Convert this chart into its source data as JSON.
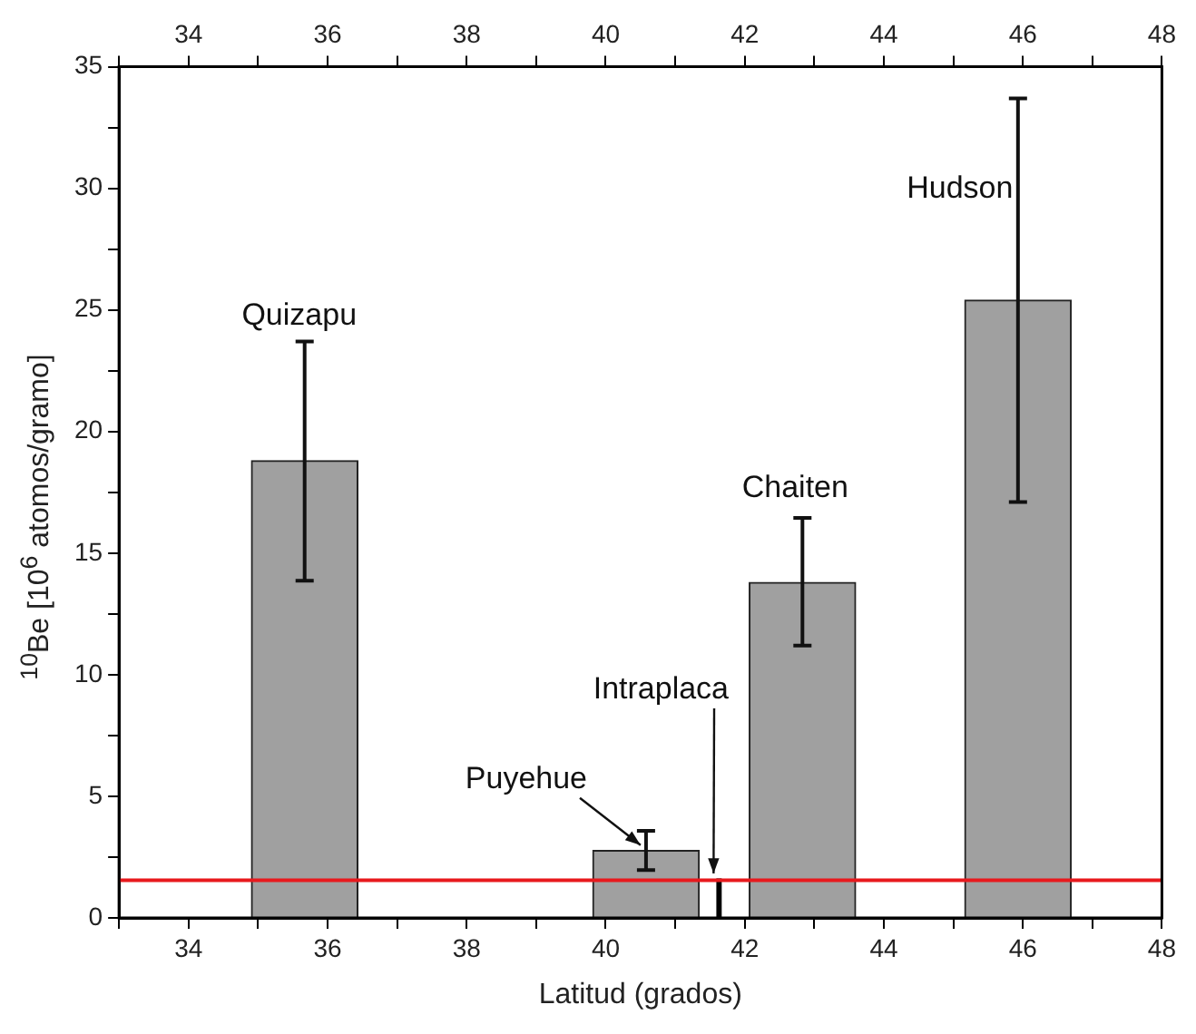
{
  "chart_data": {
    "type": "bar",
    "xlabel": "Latitud (grados)",
    "ylabel": "$^{10}$Be [10$^{6}$ atomos/gramo]",
    "series": [
      {
        "x": [
          35.67,
          40.58,
          42.83,
          45.93
        ],
        "values": [
          18.8,
          2.77,
          13.79,
          25.4
        ],
        "errors": [
          [
            13.87,
            23.7
          ],
          [
            1.97,
            3.58
          ],
          [
            11.2,
            16.45
          ],
          [
            17.1,
            33.7
          ]
        ],
        "color": "#a0a0a0"
      },
      {
        "x": [
          41.63
        ],
        "values": [
          1.6
        ],
        "color": "#000000"
      }
    ],
    "xlim": [
      33,
      48
    ],
    "xticks": [
      {
        "value": 33,
        "label": null
      },
      34,
      {
        "value": 35,
        "label": null
      },
      36,
      {
        "value": 37,
        "label": null
      },
      38,
      {
        "value": 39,
        "label": null
      },
      40,
      {
        "value": 41,
        "label": null
      },
      42,
      {
        "value": 43,
        "label": null
      },
      44,
      {
        "value": 45,
        "label": null
      },
      46,
      {
        "value": 47,
        "label": null
      },
      48
    ],
    "x2lim": [
      33,
      48
    ],
    "x2ticks": [
      {
        "value": 33,
        "label": null
      },
      34,
      {
        "value": 35,
        "label": null
      },
      36,
      {
        "value": 37,
        "label": null
      },
      38,
      {
        "value": 39,
        "label": null
      },
      40,
      {
        "value": 41,
        "label": null
      },
      42,
      {
        "value": 43,
        "label": null
      },
      44,
      {
        "value": 45,
        "label": null
      },
      46,
      {
        "value": 47,
        "label": null
      },
      48
    ],
    "ylim": [
      0,
      35
    ],
    "yticks": [
      0,
      {
        "value": 2.5,
        "label": null
      },
      5,
      {
        "value": 7.5,
        "label": null
      },
      10,
      {
        "value": 12.5,
        "label": null
      },
      15,
      {
        "value": 17.5,
        "label": null
      },
      20,
      {
        "value": 22.5,
        "label": null
      },
      25,
      {
        "value": 27.5,
        "label": null
      },
      30,
      {
        "value": 32.5,
        "label": null
      },
      35
    ],
    "ref_lines": [
      {
        "axis": "y",
        "value": 1.55,
        "color": "#e8191d"
      }
    ],
    "annotations": [
      {
        "text": "Quizapu",
        "x": 35.67,
        "y": 23.7
      },
      {
        "text": "Hudson",
        "x": 45.93,
        "y": 33.7
      },
      {
        "text": "Chaiten",
        "x": 42.83,
        "y": 16.45
      },
      {
        "text": "Puyehue",
        "x": 40.58,
        "y": 2.77
      },
      {
        "text": "Intraplaca",
        "x": 41.63,
        "y": 1.6
      }
    ],
    "grid": false,
    "legend": false
  }
}
